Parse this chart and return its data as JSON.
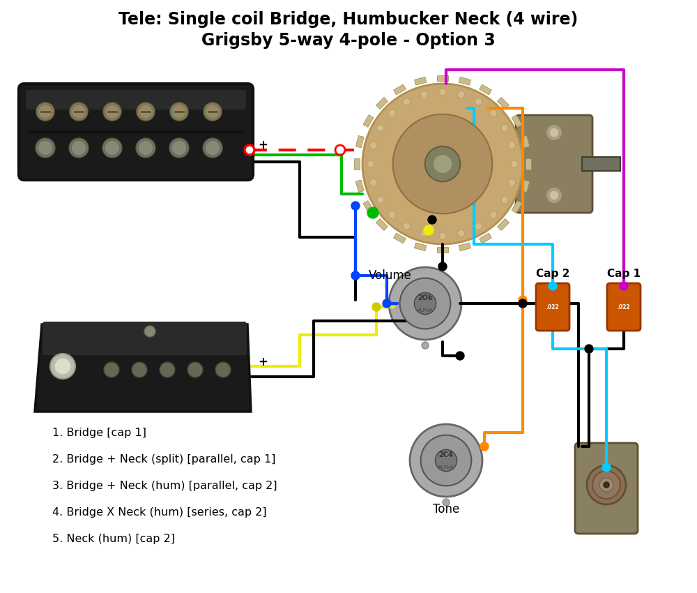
{
  "title_line1": "Tele: Single coil Bridge, Humbucker Neck (4 wire)",
  "title_line2": "Grigsby 5-way 4-pole - Option 3",
  "title_fontsize": 17,
  "bg_color": "#ffffff",
  "legend_items": [
    "1. Bridge [cap 1]",
    "2. Bridge + Neck (split) [parallel, cap 1]",
    "3. Bridge + Neck (hum) [parallel, cap 2]",
    "4. Bridge X Neck (hum) [series, cap 2]",
    "5. Neck (hum) [cap 2]"
  ],
  "legend_fontsize": 11.5,
  "colors": {
    "black": "#000000",
    "white": "#ffffff",
    "red": "#ff0000",
    "green": "#00bb00",
    "blue": "#0044ff",
    "yellow": "#eeee00",
    "orange": "#ff8800",
    "cyan": "#00ccff",
    "magenta": "#cc00cc",
    "gray": "#888888",
    "pickup_dark": "#1a1a1a",
    "pickup_edge": "#2a2a2a",
    "pole_screw": "#888866",
    "pole_round": "#777755",
    "switch_tan": "#c8a870",
    "switch_tan2": "#b09060",
    "switch_dark": "#807050",
    "metal_housing": "#8a7a60",
    "metal_edge": "#6a5a40",
    "pot_silver": "#aaaaaa",
    "pot_dark": "#666666",
    "cap_orange": "#cc5500",
    "cap_edge": "#993300"
  }
}
